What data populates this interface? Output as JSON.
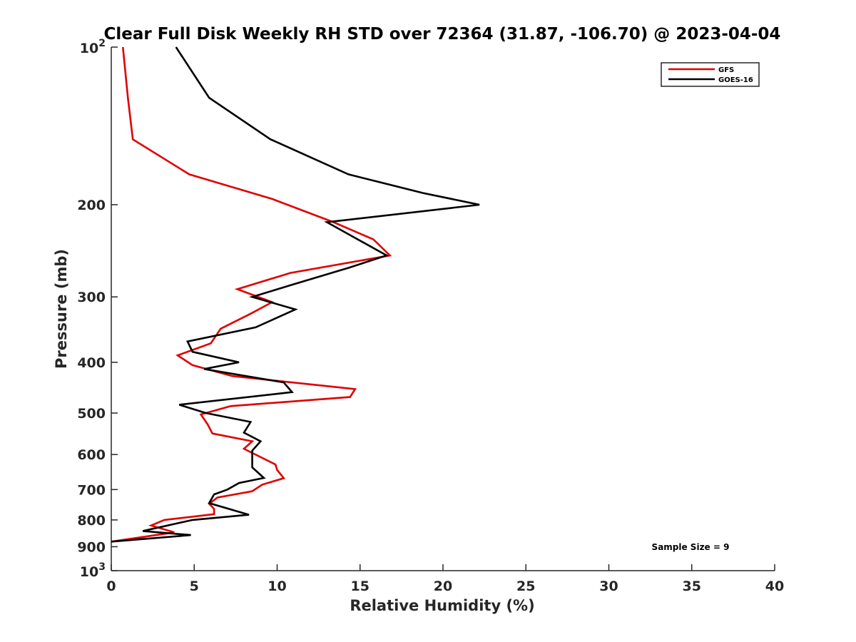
{
  "chart_data": {
    "type": "line",
    "title": "Clear Full Disk Weekly RH STD over 72364 (31.87, -106.70) @ 2023-04-04",
    "xlabel": "Relative Humidity (%)",
    "ylabel": "Pressure (mb)",
    "xlim": [
      0,
      40
    ],
    "ylim": [
      100,
      1000
    ],
    "y_scale": "log",
    "y_reversed": true,
    "grid": false,
    "legend_position": "top-right",
    "x_ticks": [
      0,
      5,
      10,
      15,
      20,
      25,
      30,
      35,
      40
    ],
    "y_ticks": [
      {
        "value": 100,
        "label": "10",
        "sup": "2"
      },
      {
        "value": 200,
        "label": "200",
        "sup": ""
      },
      {
        "value": 300,
        "label": "300",
        "sup": ""
      },
      {
        "value": 400,
        "label": "400",
        "sup": ""
      },
      {
        "value": 500,
        "label": "500",
        "sup": ""
      },
      {
        "value": 600,
        "label": "600",
        "sup": ""
      },
      {
        "value": 700,
        "label": "700",
        "sup": ""
      },
      {
        "value": 800,
        "label": "800",
        "sup": ""
      },
      {
        "value": 900,
        "label": "900",
        "sup": ""
      },
      {
        "value": 1000,
        "label": "10",
        "sup": "3"
      }
    ],
    "series": [
      {
        "name": "GFS",
        "color": "#e00000",
        "points": [
          [
            0.7,
            100
          ],
          [
            1.0,
            125
          ],
          [
            1.3,
            150
          ],
          [
            4.7,
            175
          ],
          [
            9.7,
            195
          ],
          [
            13.4,
            216
          ],
          [
            15.8,
            233
          ],
          [
            16.8,
            250
          ],
          [
            10.8,
            270
          ],
          [
            7.6,
            290
          ],
          [
            9.7,
            307
          ],
          [
            8.4,
            323
          ],
          [
            6.6,
            345
          ],
          [
            6.0,
            368
          ],
          [
            4.0,
            388
          ],
          [
            4.9,
            405
          ],
          [
            7.3,
            425
          ],
          [
            14.7,
            450
          ],
          [
            14.4,
            466
          ],
          [
            7.2,
            485
          ],
          [
            5.4,
            503
          ],
          [
            5.8,
            525
          ],
          [
            6.1,
            547
          ],
          [
            8.5,
            566
          ],
          [
            8.0,
            585
          ],
          [
            8.6,
            598
          ],
          [
            9.9,
            627
          ],
          [
            10.0,
            642
          ],
          [
            10.4,
            666
          ],
          [
            9.1,
            685
          ],
          [
            8.5,
            705
          ],
          [
            6.4,
            725
          ],
          [
            5.9,
            745
          ],
          [
            6.2,
            762
          ],
          [
            6.2,
            780
          ],
          [
            3.2,
            800
          ],
          [
            2.4,
            820
          ],
          [
            3.8,
            845
          ],
          [
            0.0,
            880
          ]
        ]
      },
      {
        "name": "GOES-16",
        "color": "#000000",
        "points": [
          [
            3.9,
            100
          ],
          [
            5.9,
            125
          ],
          [
            9.6,
            150
          ],
          [
            14.3,
            175
          ],
          [
            18.8,
            190
          ],
          [
            22.2,
            200
          ],
          [
            13.0,
            216
          ],
          [
            16.6,
            250
          ],
          [
            14.3,
            264
          ],
          [
            10.8,
            285
          ],
          [
            8.5,
            300
          ],
          [
            11.1,
            317
          ],
          [
            8.7,
            343
          ],
          [
            4.6,
            365
          ],
          [
            4.9,
            382
          ],
          [
            7.7,
            400
          ],
          [
            5.6,
            412
          ],
          [
            10.4,
            437
          ],
          [
            10.9,
            456
          ],
          [
            4.1,
            482
          ],
          [
            5.7,
            500
          ],
          [
            8.4,
            520
          ],
          [
            8.0,
            545
          ],
          [
            9.0,
            566
          ],
          [
            8.5,
            590
          ],
          [
            8.5,
            635
          ],
          [
            9.2,
            665
          ],
          [
            7.7,
            680
          ],
          [
            7.0,
            700
          ],
          [
            6.2,
            715
          ],
          [
            5.9,
            743
          ],
          [
            8.3,
            782
          ],
          [
            4.9,
            800
          ],
          [
            3.0,
            825
          ],
          [
            1.9,
            840
          ],
          [
            4.8,
            855
          ],
          [
            0.0,
            880
          ]
        ]
      }
    ],
    "annotations": [
      {
        "text": "Sample Size = 9"
      }
    ]
  }
}
